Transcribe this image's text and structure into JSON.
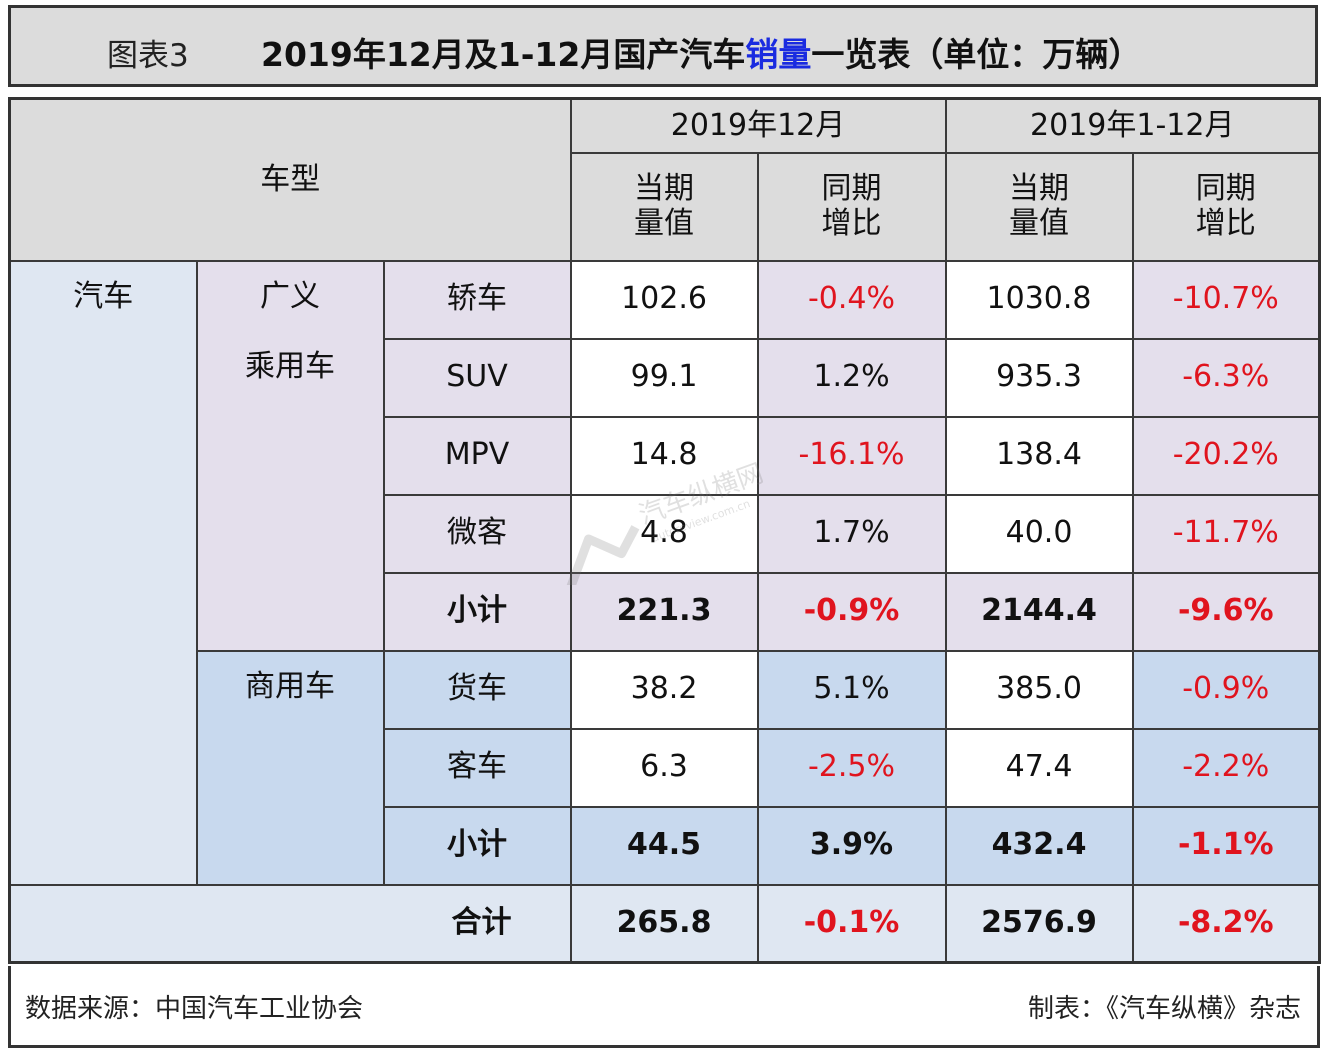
{
  "title": {
    "figure_no": "图表3",
    "text_before": "2019年12月及1-12月国产汽车",
    "text_highlight": "销量",
    "text_after": "一览表（单位：万辆）",
    "highlight_color": "#1a2be0"
  },
  "header": {
    "vehicle_type": "车型",
    "period_dec": "2019年12月",
    "period_ytd": "2019年1-12月",
    "col_value_1": "当期",
    "col_value_2": "量值",
    "col_yoy_1": "同期",
    "col_yoy_2": "增比"
  },
  "groups": {
    "car": "汽车",
    "passenger_1": "广义",
    "passenger_2": "乘用车",
    "commercial": "商用车"
  },
  "rows": [
    {
      "label": "轿车",
      "dec_value": "102.6",
      "dec_yoy": "-0.4%",
      "ytd_value": "1030.8",
      "ytd_yoy": "-10.7%"
    },
    {
      "label": "SUV",
      "dec_value": "99.1",
      "dec_yoy": "1.2%",
      "ytd_value": "935.3",
      "ytd_yoy": "-6.3%"
    },
    {
      "label": "MPV",
      "dec_value": "14.8",
      "dec_yoy": "-16.1%",
      "ytd_value": "138.4",
      "ytd_yoy": "-20.2%"
    },
    {
      "label": "微客",
      "dec_value": "4.8",
      "dec_yoy": "1.7%",
      "ytd_value": "40.0",
      "ytd_yoy": "-11.7%"
    },
    {
      "label": "小计",
      "dec_value": "221.3",
      "dec_yoy": "-0.9%",
      "ytd_value": "2144.4",
      "ytd_yoy": "-9.6%"
    },
    {
      "label": "货车",
      "dec_value": "38.2",
      "dec_yoy": "5.1%",
      "ytd_value": "385.0",
      "ytd_yoy": "-0.9%"
    },
    {
      "label": "客车",
      "dec_value": "6.3",
      "dec_yoy": "-2.5%",
      "ytd_value": "47.4",
      "ytd_yoy": "-2.2%"
    },
    {
      "label": "小计",
      "dec_value": "44.5",
      "dec_yoy": "3.9%",
      "ytd_value": "432.4",
      "ytd_yoy": "-1.1%"
    },
    {
      "label": "合计",
      "dec_value": "265.8",
      "dec_yoy": "-0.1%",
      "ytd_value": "2576.9",
      "ytd_yoy": "-8.2%"
    }
  ],
  "footer": {
    "source": "数据来源：中国汽车工业协会",
    "maker": "制表：《汽车纵横》杂志"
  },
  "watermark": {
    "text": "汽车纵横网",
    "url": "autoreview.com.cn"
  },
  "colors": {
    "header_gray": "#dcdcdc",
    "car_blue": "#dfe7f2",
    "passenger_lavender": "#e4dfec",
    "commercial_blue": "#c8d9ee",
    "negative_red": "#e0141e"
  }
}
